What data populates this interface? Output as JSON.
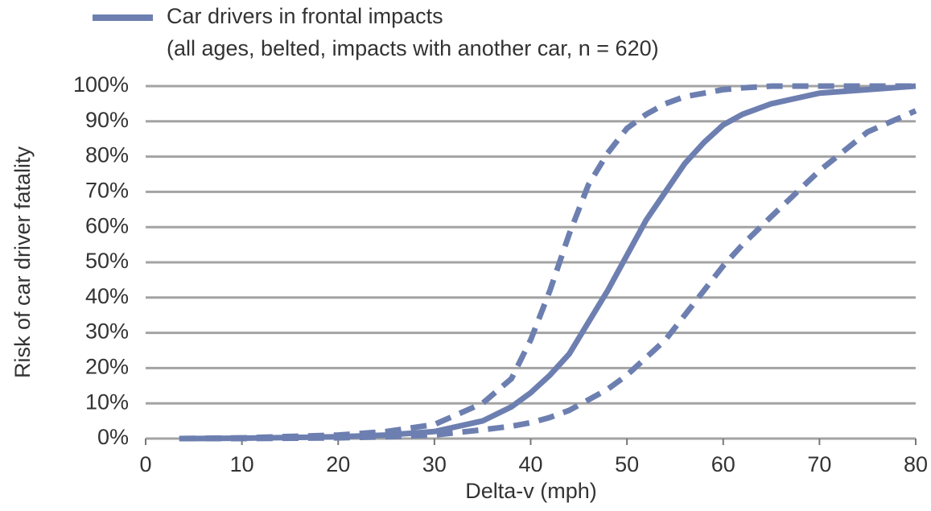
{
  "chart_data": {
    "type": "line",
    "xlabel": "Delta-v (mph)",
    "ylabel": "Risk of car driver fatality",
    "legend_note": "(all ages, belted, impacts with another car, n = 620)",
    "x": [
      3.5,
      10,
      20,
      25,
      30,
      35,
      38,
      40,
      42,
      44,
      46,
      48,
      50,
      52,
      54,
      56,
      58,
      60,
      62,
      65,
      70,
      75,
      80
    ],
    "series": [
      {
        "name": "Car drivers in frontal impacts",
        "color": "#6d7fb0",
        "dashed": false,
        "values": [
          0,
          0.1,
          0.5,
          1,
          2,
          5,
          9,
          13,
          18,
          24,
          33,
          42,
          52,
          62,
          70,
          78,
          84,
          89,
          92,
          95,
          98,
          99,
          100
        ]
      },
      {
        "color": "#6d7fb0",
        "dashed": true,
        "values": [
          0,
          0.2,
          1,
          2,
          4,
          10,
          17,
          28,
          42,
          58,
          72,
          81,
          88,
          92,
          95,
          97,
          98,
          99,
          99.5,
          100,
          100,
          100,
          100
        ]
      },
      {
        "color": "#6d7fb0",
        "dashed": true,
        "values": [
          0,
          0,
          0.2,
          0.5,
          1,
          2.5,
          3.5,
          4.5,
          6,
          8,
          11,
          14,
          18,
          23,
          28,
          35,
          42,
          49,
          55,
          63,
          76,
          87,
          93
        ]
      }
    ],
    "xlim": [
      0,
      80
    ],
    "xticks": [
      0,
      10,
      20,
      30,
      40,
      50,
      60,
      70,
      80
    ],
    "ylim": [
      0,
      100
    ],
    "yticks": [
      {
        "value": 0,
        "label": "0%"
      },
      {
        "value": 10,
        "label": "10%"
      },
      {
        "value": 20,
        "label": "20%"
      },
      {
        "value": 30,
        "label": "30%"
      },
      {
        "value": 40,
        "label": "40%"
      },
      {
        "value": 50,
        "label": "50%"
      },
      {
        "value": 60,
        "label": "60%"
      },
      {
        "value": 70,
        "label": "70%"
      },
      {
        "value": 80,
        "label": "80%"
      },
      {
        "value": 90,
        "label": "90%"
      },
      {
        "value": 100,
        "label": "100%"
      }
    ],
    "grid": true
  }
}
